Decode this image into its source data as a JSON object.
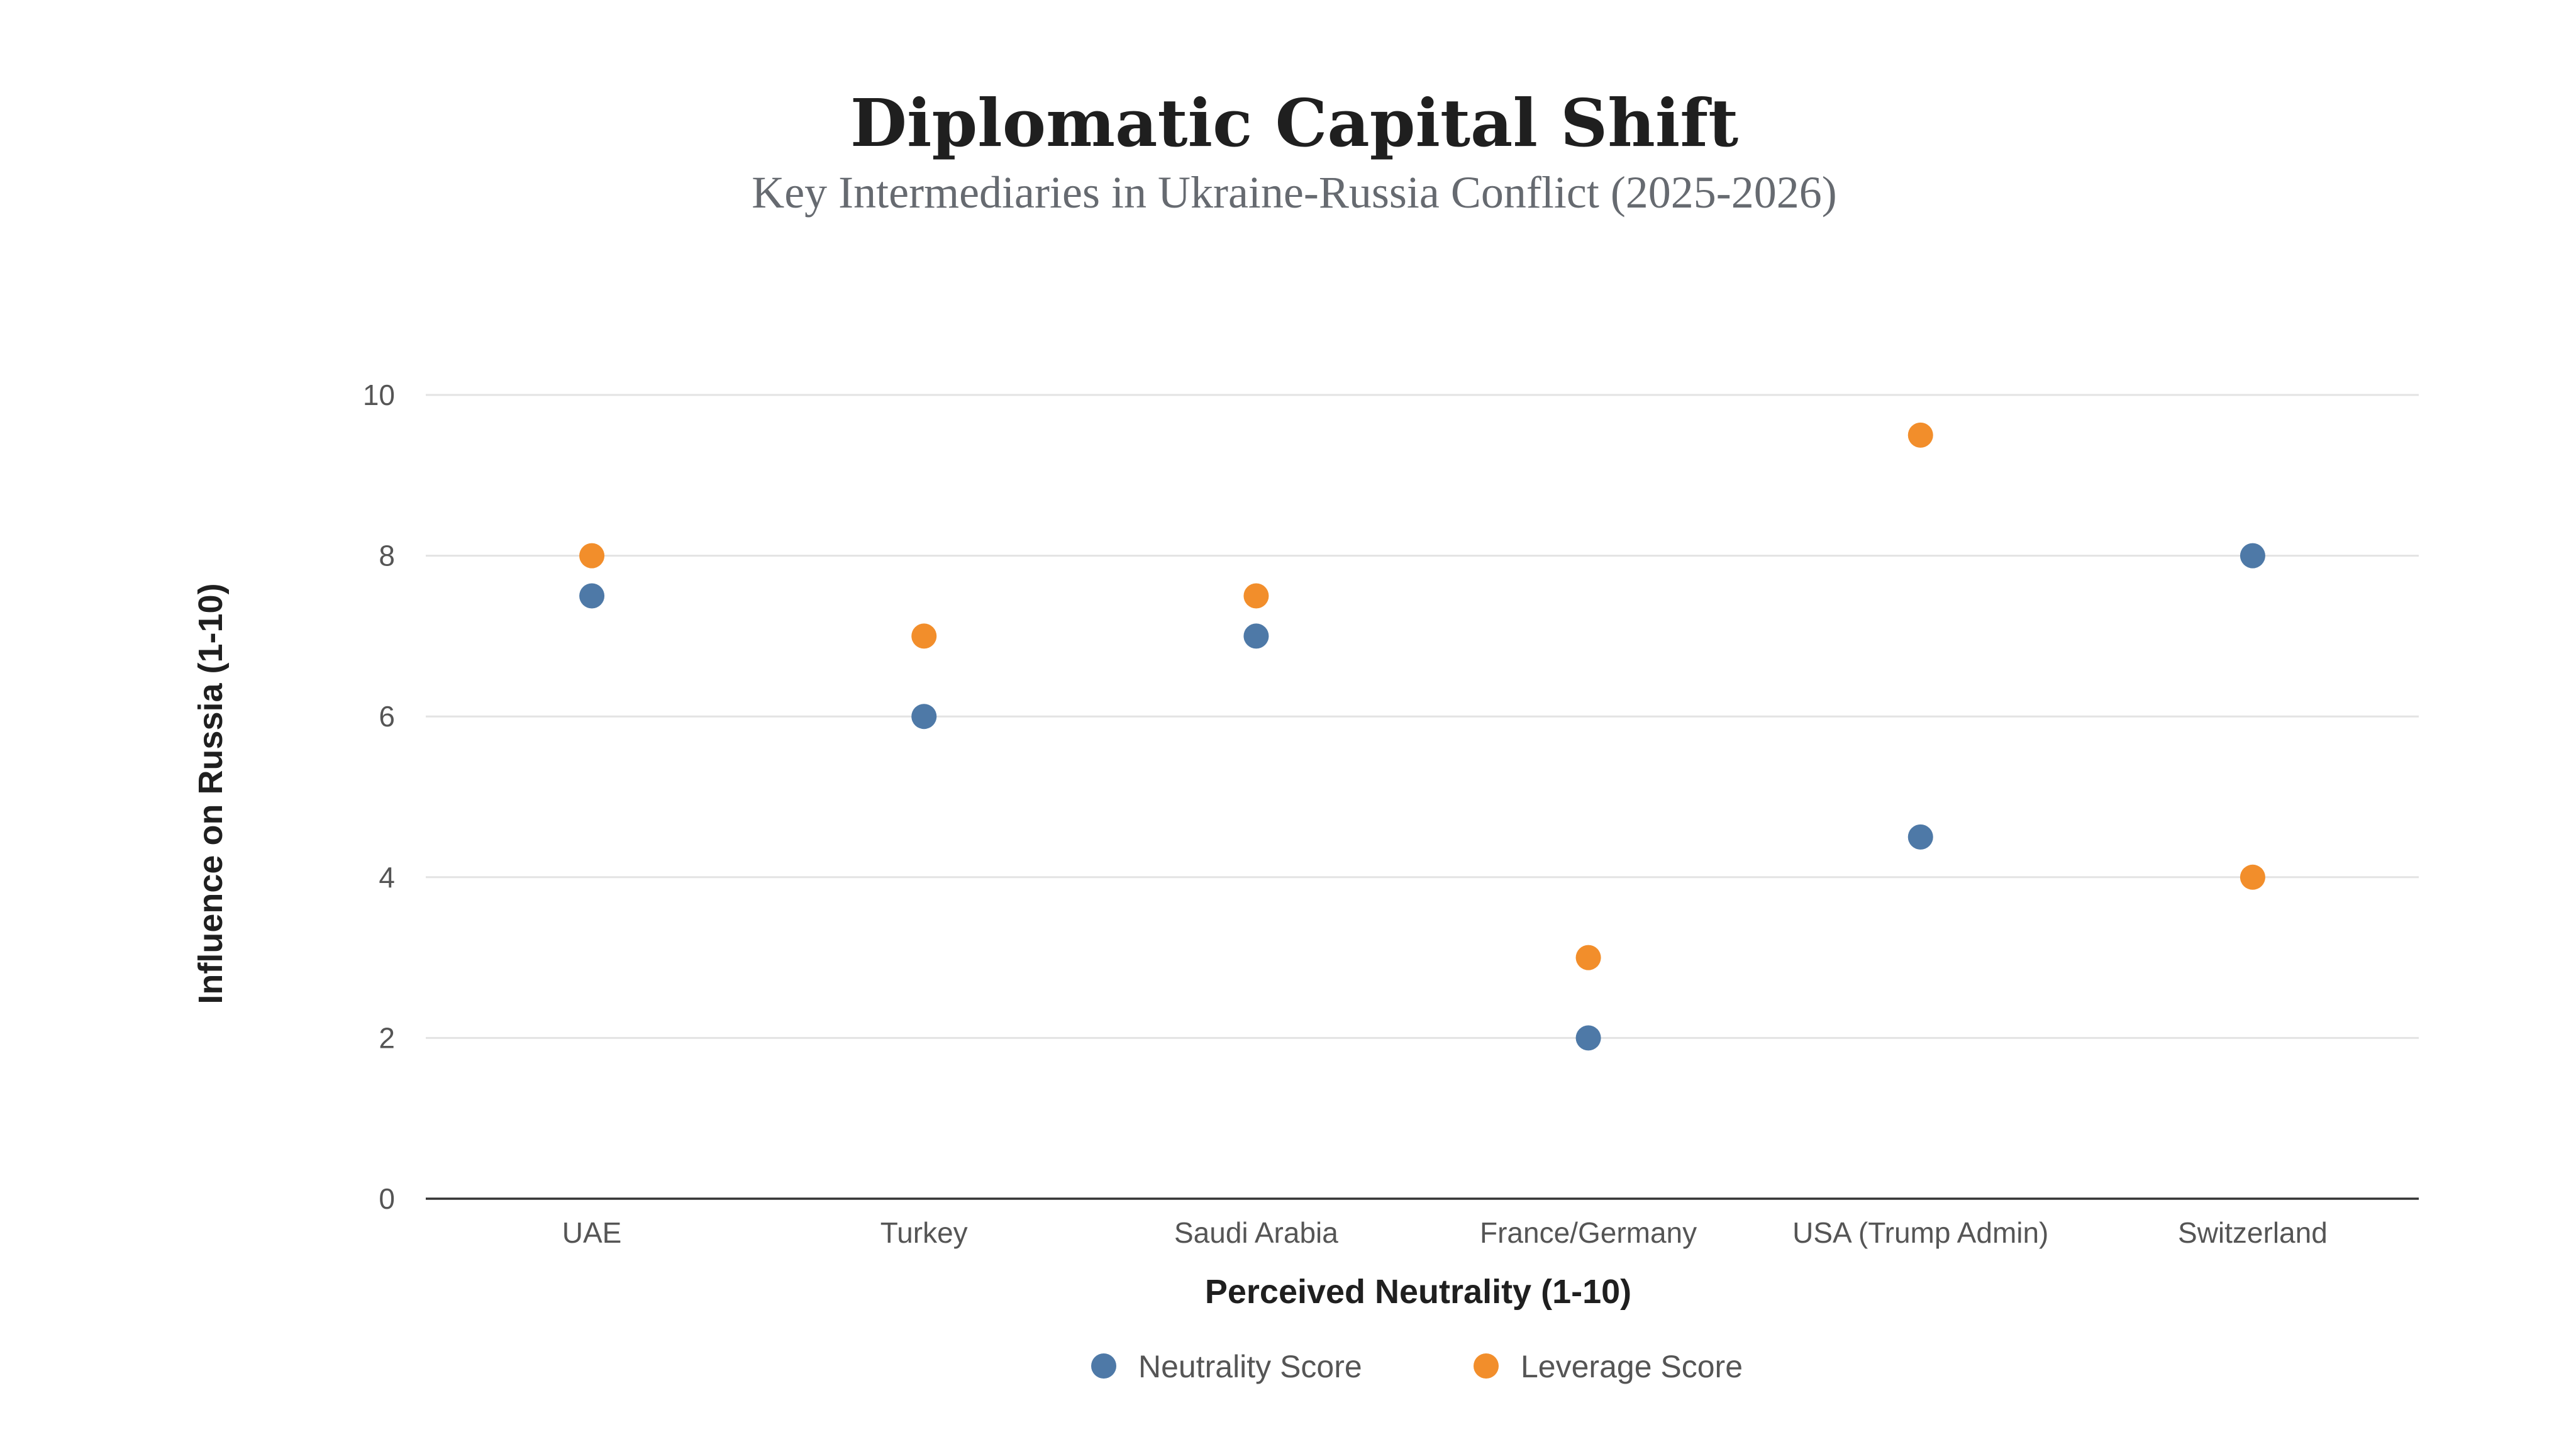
{
  "chart_data": {
    "type": "scatter",
    "title": "Diplomatic Capital Shift",
    "subtitle": "Key Intermediaries in Ukraine-Russia Conflict (2025-2026)",
    "xlabel": "Perceived Neutrality (1-10)",
    "ylabel": "Influence on Russia (1-10)",
    "categories": [
      "UAE",
      "Turkey",
      "Saudi Arabia",
      "France/Germany",
      "USA (Trump Admin)",
      "Switzerland"
    ],
    "ylim": [
      0,
      10
    ],
    "yticks": [
      0,
      2,
      4,
      6,
      8,
      10
    ],
    "grid": true,
    "legend_position": "bottom-center",
    "series": [
      {
        "name": "Neutrality Score",
        "color": "#4e79a7",
        "values": [
          7.5,
          6,
          7,
          2,
          4.5,
          8
        ]
      },
      {
        "name": "Leverage Score",
        "color": "#f28e2b",
        "values": [
          8,
          7,
          7.5,
          3,
          9.5,
          4
        ]
      }
    ]
  }
}
